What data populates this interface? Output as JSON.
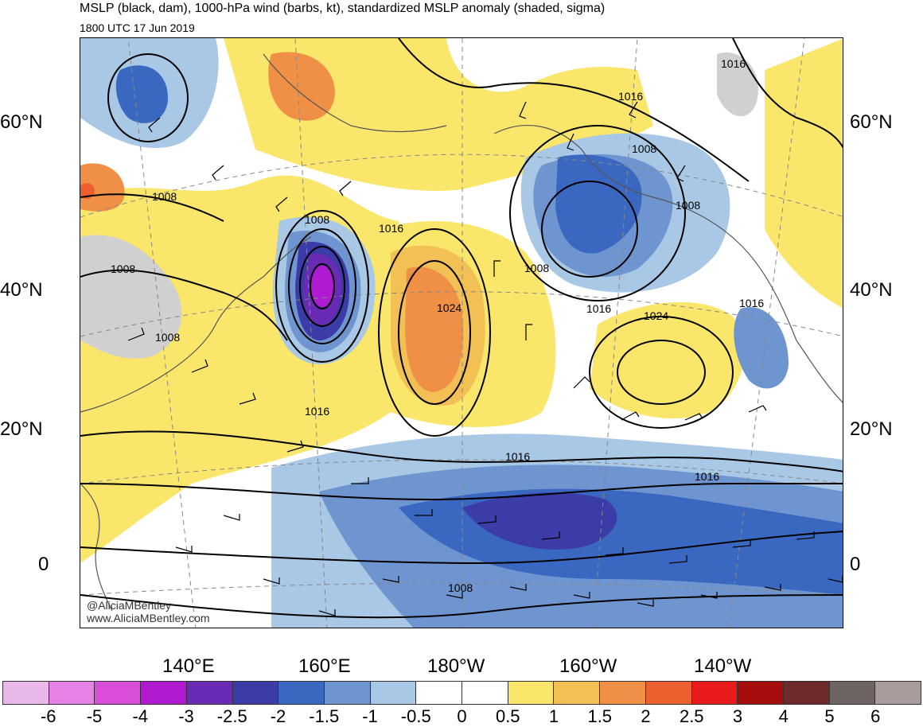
{
  "header": {
    "title": "MSLP (black, dam), 1000-hPa wind (barbs, kt), standardized MSLP anomaly (shaded, sigma)",
    "valid_time": "1800 UTC 17 Jun 2019"
  },
  "map": {
    "lat_labels_left": [
      "60°N",
      "40°N",
      "20°N",
      "0"
    ],
    "lat_labels_right": [
      "60°N",
      "40°N",
      "20°N",
      "0"
    ],
    "lon_labels": [
      "140°E",
      "160°E",
      "180°W",
      "160°W",
      "140°W"
    ],
    "isobar_labels": [
      "1016",
      "1016",
      "1008",
      "1008",
      "1008",
      "1008",
      "1016",
      "1008",
      "1008",
      "1024",
      "1016",
      "1024",
      "1016",
      "1008",
      "1016",
      "1016",
      "1016",
      "1008"
    ],
    "anomaly_features": [
      {
        "name": "deep low anomaly east of Japan",
        "sigma": -4
      },
      {
        "name": "high anomaly central North Pacific",
        "sigma": 2
      },
      {
        "name": "low anomaly Gulf of Alaska",
        "sigma": -2
      },
      {
        "name": "tropical low anomaly band",
        "sigma": -2.5
      }
    ],
    "credits": [
      "@AliciaMBentley",
      "www.AliciaMBentley.com"
    ]
  },
  "colorbar": {
    "tick_labels": [
      "-6",
      "-5",
      "-4",
      "-3",
      "-2.5",
      "-2",
      "-1.5",
      "-1",
      "-0.5",
      "0",
      "0.5",
      "1",
      "1.5",
      "2",
      "2.5",
      "3",
      "4",
      "5",
      "6"
    ],
    "colors": [
      "#e8b8e8",
      "#e682e6",
      "#d84ed8",
      "#b01ad0",
      "#6a2bb4",
      "#3c3ca8",
      "#3a68c0",
      "#6f95d0",
      "#a8c8e6",
      "#ffffff",
      "#ffffff",
      "#f9e66b",
      "#f2c054",
      "#f09046",
      "#ec6030",
      "#e81a1a",
      "#a60e0e",
      "#6e2a2a",
      "#6e6464",
      "#a89c9c"
    ]
  }
}
